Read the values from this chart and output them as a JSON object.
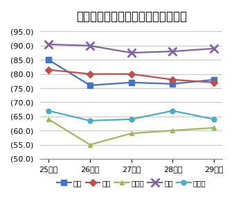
{
  "title": "総収益に占める料金収入比率の推移",
  "x_labels": [
    "25年度",
    "26年度",
    "27年度",
    "28年度",
    "29年度"
  ],
  "series": {
    "水道": [
      85.0,
      76.0,
      77.0,
      76.5,
      78.0
    ],
    "病院": [
      81.5,
      80.0,
      80.0,
      78.0,
      77.0
    ],
    "下水道": [
      64.0,
      55.0,
      59.0,
      60.0,
      61.0
    ],
    "ガス": [
      90.5,
      90.0,
      87.5,
      88.0,
      89.0
    ],
    "その他": [
      67.0,
      63.5,
      64.0,
      67.0,
      64.0
    ]
  },
  "colors": {
    "水道": "#4472C4",
    "病院": "#C0504D",
    "下水道": "#9BBB59",
    "ガス": "#8064A2",
    "その他": "#4BACC6"
  },
  "markers": {
    "水道": "s",
    "病院": "D",
    "下水道": "^",
    "ガス": "x",
    "その他": "o"
  },
  "ylim": [
    50.0,
    97.0
  ],
  "yticks": [
    50.0,
    55.0,
    60.0,
    65.0,
    70.0,
    75.0,
    80.0,
    85.0,
    90.0,
    95.0
  ],
  "background_color": "#ffffff",
  "grid_color": "#c8c8c8",
  "title_fontsize": 12
}
